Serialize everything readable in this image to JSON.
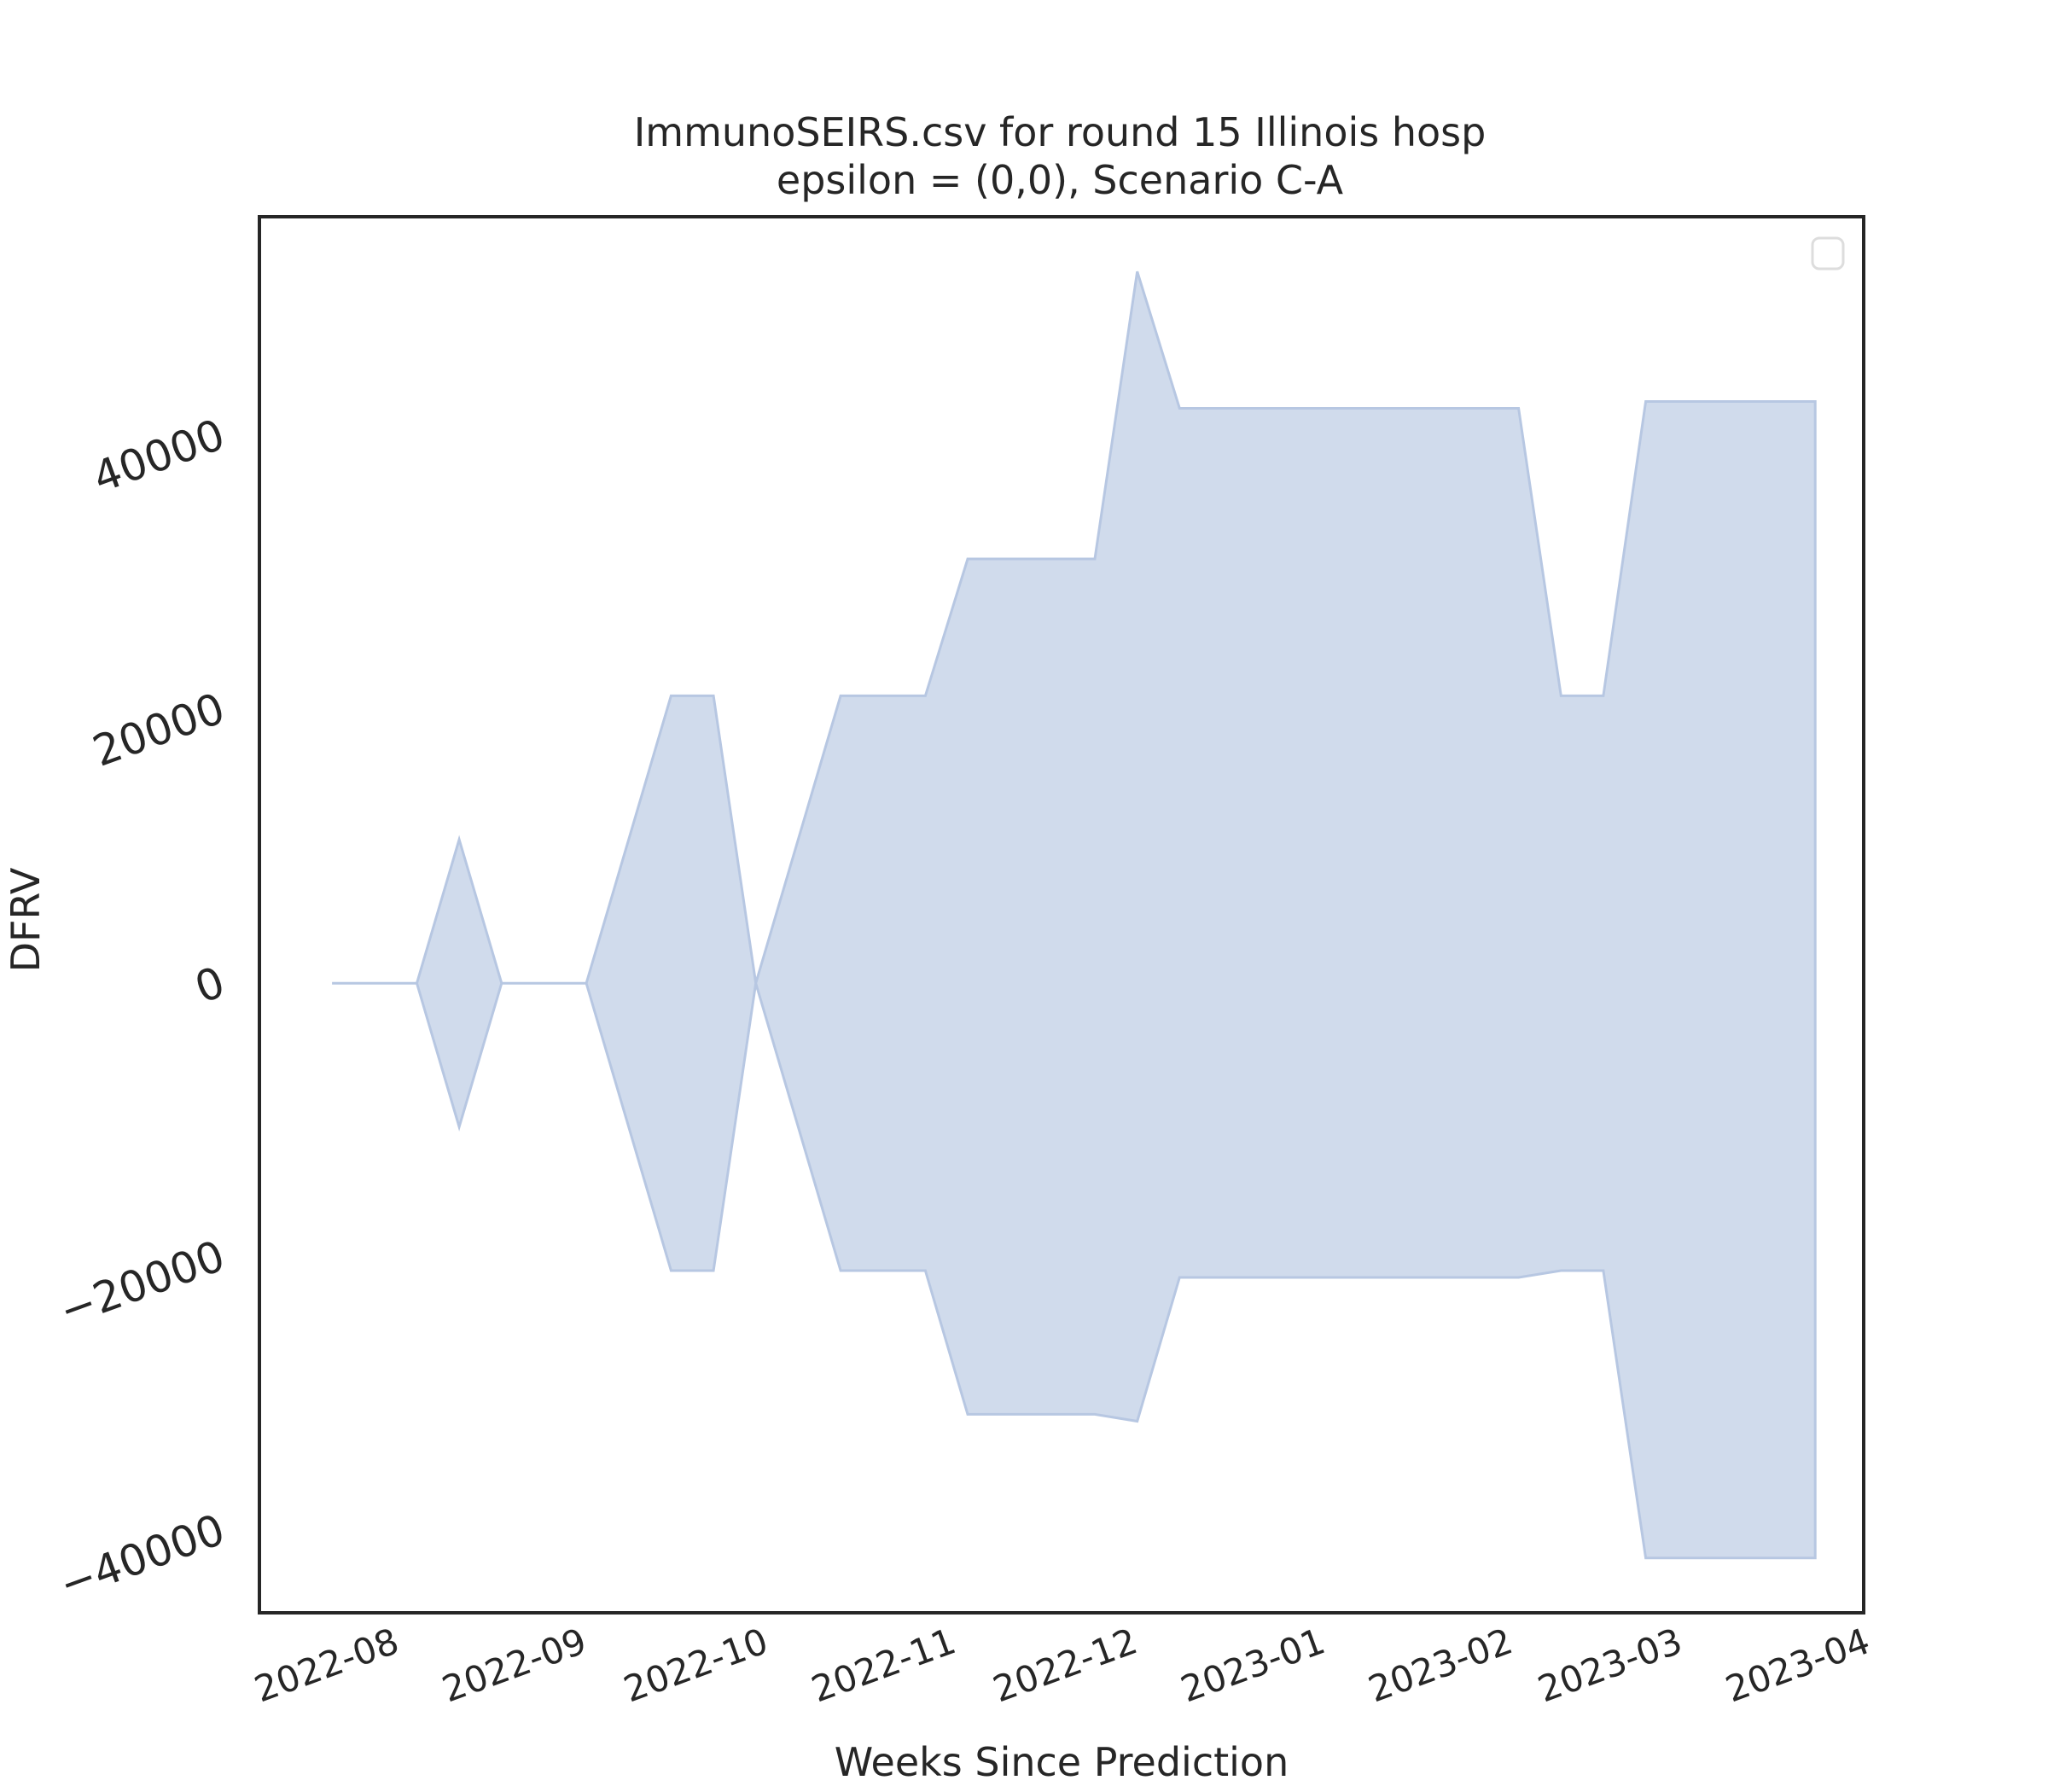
{
  "chart_data": {
    "type": "area",
    "title_line1": "ImmunoSEIRS.csv for round 15 Illinois hosp",
    "title_line2": "epsilon = (0,0), Scenario C-A",
    "xlabel": "Weeks Since Prediction",
    "ylabel": "DFRV",
    "ylim": [
      -46000,
      56000
    ],
    "x_axis": {
      "start": "2022-07-10",
      "end": "2023-04-01",
      "tick_labels": [
        "2022-08",
        "2022-09",
        "2022-10",
        "2022-11",
        "2022-12",
        "2023-01",
        "2023-02",
        "2023-03",
        "2023-04"
      ],
      "tick_dates": [
        "2022-08-01",
        "2022-09-01",
        "2022-10-01",
        "2022-11-01",
        "2022-12-01",
        "2023-01-01",
        "2023-02-01",
        "2023-03-01",
        "2023-04-01"
      ]
    },
    "y_ticks": [
      -40000,
      -20000,
      0,
      20000,
      40000
    ],
    "y_tick_labels": [
      "−40000",
      "−20000",
      "0",
      "20000",
      "40000"
    ],
    "grid": false,
    "legend": {
      "placement": "top-right",
      "entries": []
    },
    "color": "#b7c7e2",
    "band": {
      "x": [
        "2022-07-22",
        "2022-08-05",
        "2022-08-12",
        "2022-08-19",
        "2022-09-02",
        "2022-09-16",
        "2022-09-23",
        "2022-09-30",
        "2022-10-14",
        "2022-10-28",
        "2022-11-04",
        "2022-11-25",
        "2022-12-02",
        "2022-12-09",
        "2023-02-03",
        "2023-02-10",
        "2023-02-17",
        "2023-02-24",
        "2023-03-24"
      ],
      "upper": [
        0,
        0,
        10500,
        0,
        0,
        21000,
        21000,
        0,
        21000,
        21000,
        31000,
        31000,
        52000,
        42000,
        42000,
        21000,
        21000,
        42500,
        42500
      ],
      "lower": [
        0,
        0,
        -10500,
        0,
        0,
        -21000,
        -21000,
        0,
        -21000,
        -21000,
        -31500,
        -31500,
        -32000,
        -21500,
        -21500,
        -21000,
        -21000,
        -42000,
        -42000
      ]
    }
  }
}
